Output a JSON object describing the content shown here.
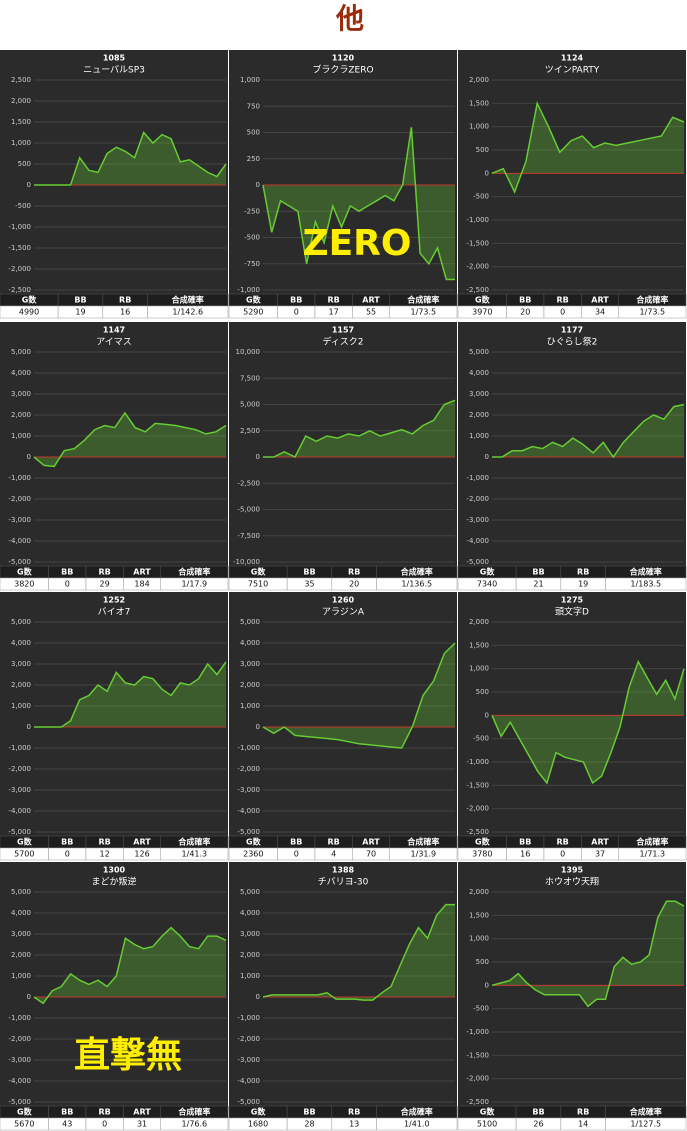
{
  "title": "他",
  "chart_data": [
    {
      "type": "area",
      "number": 1085,
      "title": "ニューパルSP3",
      "color": "#66cc33",
      "grid": true,
      "ylim": [
        -2500,
        2500
      ],
      "yticks": [
        {
          "value": 2500,
          "label": "2,500"
        },
        {
          "value": 2000,
          "label": "2,000"
        },
        {
          "value": 1500,
          "label": "1,500"
        },
        {
          "value": 1000,
          "label": "1,000"
        },
        500,
        0,
        -500,
        {
          "value": -1000,
          "label": "-1,000"
        },
        {
          "value": -1500,
          "label": "-1,500"
        },
        {
          "value": -2000,
          "label": "-2,000"
        },
        {
          "value": -2500,
          "label": "-2,500"
        }
      ],
      "values": [
        0,
        0,
        0,
        0,
        0,
        650,
        350,
        300,
        750,
        900,
        800,
        650,
        1250,
        1000,
        1200,
        1100,
        550,
        600,
        450,
        300,
        200,
        500
      ],
      "table": {
        "header": [
          "G数",
          "BB",
          "RB",
          "合成確率"
        ],
        "row": [
          4990,
          19,
          16,
          "1/142.6"
        ]
      }
    },
    {
      "type": "area",
      "number": 1120,
      "title": "ブラクラZERO",
      "color": "#66cc33",
      "grid": true,
      "annotation": "ZERO",
      "ylim": [
        -1000,
        1000
      ],
      "yticks": [
        {
          "value": 1000,
          "label": "1,000"
        },
        750,
        500,
        250,
        0,
        -250,
        -500,
        -750,
        {
          "value": -1000,
          "label": "-1,000"
        }
      ],
      "values": [
        0,
        -450,
        -150,
        -200,
        -250,
        -750,
        -350,
        -550,
        -200,
        -400,
        -200,
        -250,
        -200,
        -150,
        -100,
        -150,
        0,
        550,
        -650,
        -750,
        -600,
        -900,
        -900
      ],
      "table": {
        "header": [
          "G数",
          "BB",
          "RB",
          "ART",
          "合成確率"
        ],
        "row": [
          5290,
          0,
          17,
          55,
          "1/73.5"
        ]
      }
    },
    {
      "type": "area",
      "number": 1124,
      "title": "ツインPARTY",
      "color": "#66cc33",
      "grid": true,
      "ylim": [
        -2500,
        2000
      ],
      "yticks": [
        {
          "value": 2000,
          "label": "2,000"
        },
        {
          "value": 1500,
          "label": "1,500"
        },
        {
          "value": 1000,
          "label": "1,000"
        },
        500,
        0,
        -500,
        {
          "value": -1000,
          "label": "-1,000"
        },
        {
          "value": -1500,
          "label": "-1,500"
        },
        {
          "value": -2000,
          "label": "-2,000"
        },
        {
          "value": -2500,
          "label": "-2,500"
        }
      ],
      "values": [
        0,
        100,
        -400,
        250,
        1500,
        1000,
        450,
        700,
        800,
        550,
        650,
        600,
        650,
        700,
        750,
        800,
        1200,
        1100
      ],
      "table": {
        "header": [
          "G数",
          "BB",
          "RB",
          "ART",
          "合成確率"
        ],
        "row": [
          3970,
          20,
          0,
          34,
          "1/73.5"
        ]
      }
    },
    {
      "type": "area",
      "number": 1147,
      "title": "アイマス",
      "color": "#66cc33",
      "grid": true,
      "ylim": [
        -5000,
        5000
      ],
      "yticks": [
        {
          "value": 5000,
          "label": "5,000"
        },
        {
          "value": 4000,
          "label": "4,000"
        },
        {
          "value": 3000,
          "label": "3,000"
        },
        {
          "value": 2000,
          "label": "2,000"
        },
        {
          "value": 1000,
          "label": "1,000"
        },
        0,
        {
          "value": -1000,
          "label": "-1,000"
        },
        {
          "value": -2000,
          "label": "-2,000"
        },
        {
          "value": -3000,
          "label": "-3,000"
        },
        {
          "value": -4000,
          "label": "-4,000"
        },
        {
          "value": -5000,
          "label": "-5,000"
        }
      ],
      "values": [
        0,
        -400,
        -450,
        300,
        400,
        800,
        1300,
        1500,
        1400,
        2100,
        1400,
        1200,
        1600,
        1550,
        1500,
        1400,
        1300,
        1100,
        1200,
        1500
      ],
      "table": {
        "header": [
          "G数",
          "BB",
          "RB",
          "ART",
          "合成確率"
        ],
        "row": [
          3820,
          0,
          29,
          184,
          "1/17.9"
        ]
      }
    },
    {
      "type": "area",
      "number": 1157,
      "title": "ディスク2",
      "color": "#66cc33",
      "grid": true,
      "ylim": [
        -10000,
        10000
      ],
      "yticks": [
        {
          "value": 10000,
          "label": "10,000"
        },
        {
          "value": 7500,
          "label": "7,500"
        },
        {
          "value": 5000,
          "label": "5,000"
        },
        {
          "value": 2500,
          "label": "2,500"
        },
        0,
        {
          "value": -2500,
          "label": "-2,500"
        },
        {
          "value": -5000,
          "label": "-5,000"
        },
        {
          "value": -7500,
          "label": "-7,500"
        },
        {
          "value": -10000,
          "label": "-10,000"
        }
      ],
      "values": [
        0,
        0,
        500,
        0,
        2000,
        1500,
        2000,
        1800,
        2200,
        2000,
        2500,
        2000,
        2300,
        2600,
        2200,
        3000,
        3500,
        5000,
        5400
      ],
      "table": {
        "header": [
          "G数",
          "BB",
          "RB",
          "合成確率"
        ],
        "row": [
          7510,
          35,
          20,
          "1/136.5"
        ]
      }
    },
    {
      "type": "area",
      "number": 1177,
      "title": "ひぐらし祭2",
      "color": "#66cc33",
      "grid": true,
      "ylim": [
        -5000,
        5000
      ],
      "yticks": [
        {
          "value": 5000,
          "label": "5,000"
        },
        {
          "value": 4000,
          "label": "4,000"
        },
        {
          "value": 3000,
          "label": "3,000"
        },
        {
          "value": 2000,
          "label": "2,000"
        },
        {
          "value": 1000,
          "label": "1,000"
        },
        0,
        {
          "value": -1000,
          "label": "-1,000"
        },
        {
          "value": -2000,
          "label": "-2,000"
        },
        {
          "value": -3000,
          "label": "-3,000"
        },
        {
          "value": -4000,
          "label": "-4,000"
        },
        {
          "value": -5000,
          "label": "-5,000"
        }
      ],
      "values": [
        0,
        0,
        300,
        300,
        500,
        400,
        700,
        500,
        900,
        600,
        200,
        700,
        0,
        700,
        1200,
        1700,
        2000,
        1800,
        2400,
        2500
      ],
      "table": {
        "header": [
          "G数",
          "BB",
          "RB",
          "合成確率"
        ],
        "row": [
          7340,
          21,
          19,
          "1/183.5"
        ]
      }
    },
    {
      "type": "area",
      "number": 1252,
      "title": "バイオ7",
      "color": "#66cc33",
      "grid": true,
      "ylim": [
        -5000,
        5000
      ],
      "yticks": [
        {
          "value": 5000,
          "label": "5,000"
        },
        {
          "value": 4000,
          "label": "4,000"
        },
        {
          "value": 3000,
          "label": "3,000"
        },
        {
          "value": 2000,
          "label": "2,000"
        },
        {
          "value": 1000,
          "label": "1,000"
        },
        0,
        {
          "value": -1000,
          "label": "-1,000"
        },
        {
          "value": -2000,
          "label": "-2,000"
        },
        {
          "value": -3000,
          "label": "-3,000"
        },
        {
          "value": -4000,
          "label": "-4,000"
        },
        {
          "value": -5000,
          "label": "-5,000"
        }
      ],
      "values": [
        0,
        0,
        0,
        0,
        300,
        1300,
        1500,
        2000,
        1700,
        2600,
        2100,
        2000,
        2400,
        2300,
        1800,
        1500,
        2100,
        2000,
        2300,
        3000,
        2500,
        3100
      ],
      "table": {
        "header": [
          "G数",
          "BB",
          "RB",
          "ART",
          "合成確率"
        ],
        "row": [
          5700,
          0,
          12,
          126,
          "1/41.3"
        ]
      }
    },
    {
      "type": "area",
      "number": 1260,
      "title": "アラジンA",
      "color": "#66cc33",
      "grid": true,
      "ylim": [
        -5000,
        5000
      ],
      "yticks": [
        {
          "value": 5000,
          "label": "5,000"
        },
        {
          "value": 4000,
          "label": "4,000"
        },
        {
          "value": 3000,
          "label": "3,000"
        },
        {
          "value": 2000,
          "label": "2,000"
        },
        {
          "value": 1000,
          "label": "1,000"
        },
        0,
        {
          "value": -1000,
          "label": "-1,000"
        },
        {
          "value": -2000,
          "label": "-2,000"
        },
        {
          "value": -3000,
          "label": "-3,000"
        },
        {
          "value": -4000,
          "label": "-4,000"
        },
        {
          "value": -5000,
          "label": "-5,000"
        }
      ],
      "values": [
        0,
        -300,
        0,
        -400,
        -450,
        -500,
        -550,
        -600,
        -700,
        -800,
        -850,
        -900,
        -950,
        -1000,
        0,
        1500,
        2200,
        3500,
        4000
      ],
      "table": {
        "header": [
          "G数",
          "BB",
          "RB",
          "ART",
          "合成確率"
        ],
        "row": [
          2360,
          0,
          4,
          70,
          "1/31.9"
        ]
      }
    },
    {
      "type": "area",
      "number": 1275,
      "title": "頭文字D",
      "color": "#66cc33",
      "grid": true,
      "ylim": [
        -2500,
        2000
      ],
      "yticks": [
        {
          "value": 2000,
          "label": "2,000"
        },
        {
          "value": 1500,
          "label": "1,500"
        },
        {
          "value": 1000,
          "label": "1,000"
        },
        500,
        0,
        -500,
        {
          "value": -1000,
          "label": "-1,000"
        },
        {
          "value": -1500,
          "label": "-1,500"
        },
        {
          "value": -2000,
          "label": "-2,000"
        },
        {
          "value": -2500,
          "label": "-2,500"
        }
      ],
      "values": [
        0,
        -450,
        -150,
        -500,
        -850,
        -1200,
        -1450,
        -800,
        -900,
        -950,
        -1000,
        -1450,
        -1300,
        -800,
        -250,
        600,
        1150,
        800,
        450,
        750,
        350,
        1000
      ],
      "table": {
        "header": [
          "G数",
          "BB",
          "RB",
          "ART",
          "合成確率"
        ],
        "row": [
          3780,
          16,
          0,
          37,
          "1/71.3"
        ]
      }
    },
    {
      "type": "area",
      "number": 1300,
      "title": "まどか叛逆",
      "color": "#66cc33",
      "grid": true,
      "annotation": "直撃無",
      "ylim": [
        -5000,
        5000
      ],
      "yticks": [
        {
          "value": 5000,
          "label": "5,000"
        },
        {
          "value": 4000,
          "label": "4,000"
        },
        {
          "value": 3000,
          "label": "3,000"
        },
        {
          "value": 2000,
          "label": "2,000"
        },
        {
          "value": 1000,
          "label": "1,000"
        },
        0,
        {
          "value": -1000,
          "label": "-1,000"
        },
        {
          "value": -2000,
          "label": "-2,000"
        },
        {
          "value": -3000,
          "label": "-3,000"
        },
        {
          "value": -4000,
          "label": "-4,000"
        },
        {
          "value": -5000,
          "label": "-5,000"
        }
      ],
      "values": [
        0,
        -300,
        300,
        500,
        1100,
        800,
        600,
        800,
        500,
        1000,
        2800,
        2500,
        2300,
        2400,
        2900,
        3300,
        2900,
        2400,
        2300,
        2900,
        2900,
        2700
      ],
      "table": {
        "header": [
          "G数",
          "BB",
          "RB",
          "ART",
          "合成確率"
        ],
        "row": [
          5670,
          43,
          0,
          31,
          "1/76.6"
        ]
      }
    },
    {
      "type": "area",
      "number": 1388,
      "title": "チバリヨ-30",
      "color": "#66cc33",
      "grid": true,
      "ylim": [
        -5000,
        5000
      ],
      "yticks": [
        {
          "value": 5000,
          "label": "5,000"
        },
        {
          "value": 4000,
          "label": "4,000"
        },
        {
          "value": 3000,
          "label": "3,000"
        },
        {
          "value": 2000,
          "label": "2,000"
        },
        {
          "value": 1000,
          "label": "1,000"
        },
        0,
        {
          "value": -1000,
          "label": "-1,000"
        },
        {
          "value": -2000,
          "label": "-2,000"
        },
        {
          "value": -3000,
          "label": "-3,000"
        },
        {
          "value": -4000,
          "label": "-4,000"
        },
        {
          "value": -5000,
          "label": "-5,000"
        }
      ],
      "values": [
        0,
        100,
        100,
        100,
        100,
        100,
        100,
        200,
        -100,
        -100,
        -100,
        -150,
        -150,
        200,
        500,
        1500,
        2500,
        3300,
        2800,
        3900,
        4400,
        4400
      ],
      "table": {
        "header": [
          "G数",
          "BB",
          "RB",
          "合成確率"
        ],
        "row": [
          1680,
          28,
          13,
          "1/41.0"
        ]
      }
    },
    {
      "type": "area",
      "number": 1395,
      "title": "ホウオウ天翔",
      "color": "#66cc33",
      "grid": true,
      "ylim": [
        -2500,
        2000
      ],
      "yticks": [
        {
          "value": 2000,
          "label": "2,000"
        },
        {
          "value": 1500,
          "label": "1,500"
        },
        {
          "value": 1000,
          "label": "1,000"
        },
        500,
        0,
        -500,
        {
          "value": -1000,
          "label": "-1,000"
        },
        {
          "value": -1500,
          "label": "-1,500"
        },
        {
          "value": -2000,
          "label": "-2,000"
        },
        {
          "value": -2500,
          "label": "-2,500"
        }
      ],
      "values": [
        0,
        50,
        100,
        250,
        50,
        -100,
        -200,
        -200,
        -200,
        -200,
        -200,
        -450,
        -300,
        -300,
        400,
        600,
        450,
        500,
        650,
        1450,
        1800,
        1800,
        1700
      ],
      "table": {
        "header": [
          "G数",
          "BB",
          "RB",
          "合成確率"
        ],
        "row": [
          5100,
          26,
          14,
          "1/127.5"
        ]
      }
    }
  ]
}
